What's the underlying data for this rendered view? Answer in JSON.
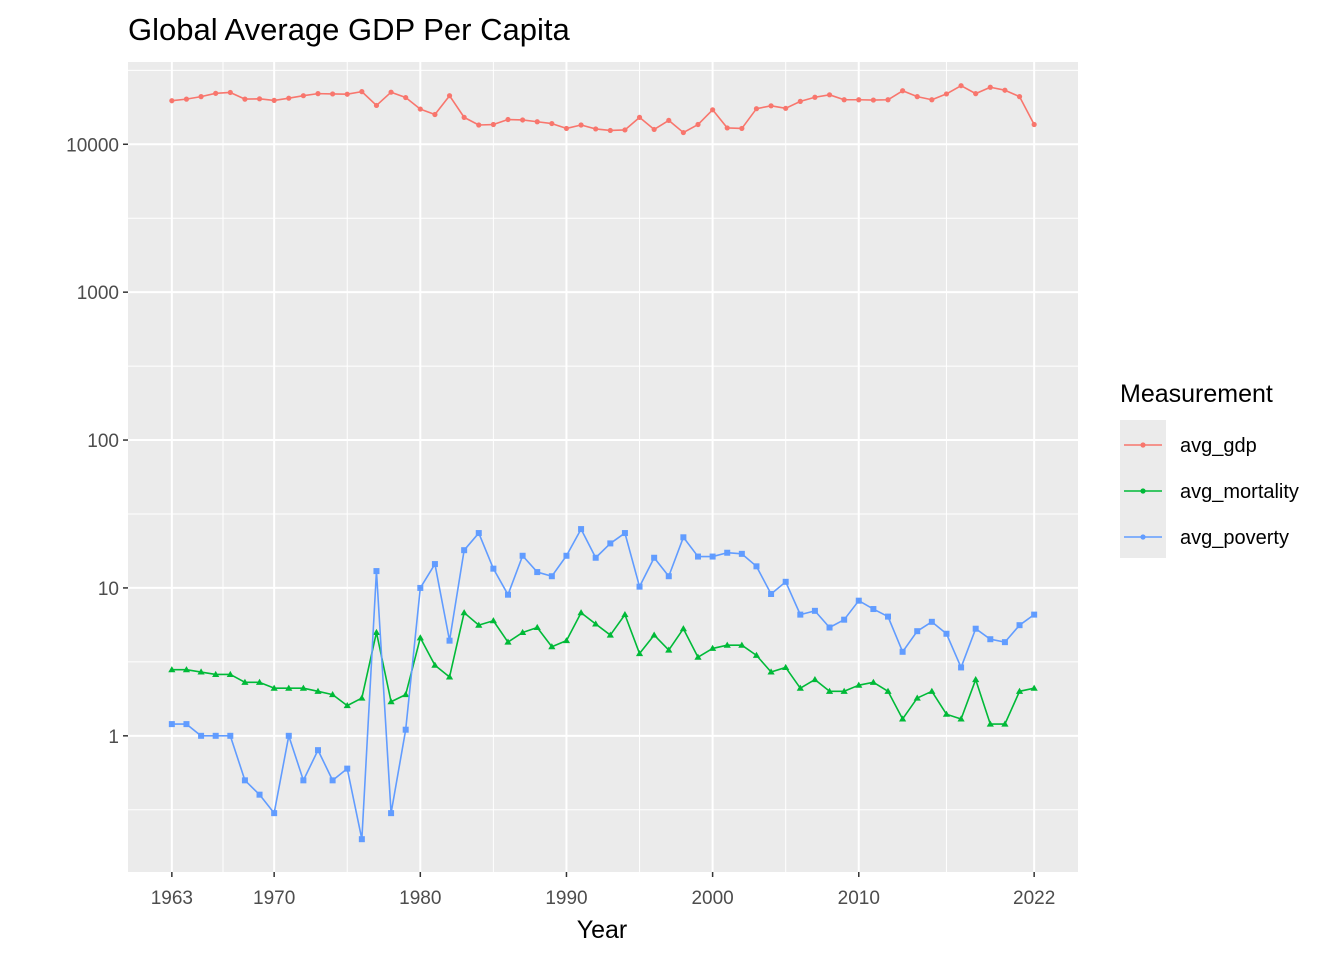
{
  "chart_data": {
    "type": "line",
    "title": "Global Average GDP Per Capita",
    "xlabel": "Year",
    "ylabel": "",
    "y_scale": "log10",
    "xlim": [
      1960,
      2025
    ],
    "ylim": [
      0.12,
      36000
    ],
    "x_ticks": [
      1963,
      1970,
      1980,
      1990,
      2000,
      2010,
      2022
    ],
    "y_ticks": [
      1,
      10,
      100,
      1000,
      10000
    ],
    "y_tick_labels": [
      "1",
      "10",
      "100",
      "1000",
      "10000"
    ],
    "grid": true,
    "panel_background": "#ebebeb",
    "legend": {
      "title": "Measurement",
      "position": "right",
      "entries": [
        "avg_gdp",
        "avg_mortality",
        "avg_poverty"
      ]
    },
    "x": [
      1963,
      1964,
      1965,
      1966,
      1967,
      1968,
      1969,
      1970,
      1971,
      1972,
      1973,
      1974,
      1975,
      1976,
      1977,
      1978,
      1979,
      1980,
      1981,
      1982,
      1983,
      1984,
      1985,
      1986,
      1987,
      1988,
      1989,
      1990,
      1991,
      1992,
      1993,
      1994,
      1995,
      1996,
      1997,
      1998,
      1999,
      2000,
      2001,
      2002,
      2003,
      2004,
      2005,
      2006,
      2007,
      2008,
      2009,
      2010,
      2011,
      2012,
      2013,
      2014,
      2015,
      2016,
      2017,
      2018,
      2019,
      2020,
      2021,
      2022
    ],
    "series": [
      {
        "name": "avg_gdp",
        "color": "#f8766d",
        "marker": "circle",
        "values": [
          19700,
          20200,
          21000,
          22100,
          22400,
          20200,
          20300,
          19800,
          20500,
          21300,
          22000,
          21900,
          21800,
          22700,
          18300,
          22500,
          20700,
          17300,
          15900,
          21300,
          15200,
          13500,
          13600,
          14700,
          14600,
          14200,
          13800,
          12800,
          13500,
          12700,
          12400,
          12500,
          15200,
          12600,
          14500,
          12000,
          13600,
          17100,
          12900,
          12800,
          17400,
          18200,
          17500,
          19500,
          20800,
          21600,
          20000,
          20000,
          19900,
          20000,
          23000,
          21000,
          20000,
          21900,
          24900,
          22000,
          24300,
          23200,
          21000,
          13600
        ]
      },
      {
        "name": "avg_mortality",
        "color": "#00ba38",
        "marker": "triangle",
        "values": [
          2.8,
          2.8,
          2.7,
          2.6,
          2.6,
          2.3,
          2.3,
          2.1,
          2.1,
          2.1,
          2.0,
          1.9,
          1.6,
          1.8,
          5.0,
          1.7,
          1.9,
          4.6,
          3.0,
          2.5,
          6.8,
          5.6,
          6.0,
          4.3,
          5.0,
          5.4,
          4.0,
          4.4,
          6.8,
          5.7,
          4.8,
          6.6,
          3.6,
          4.8,
          3.8,
          5.3,
          3.4,
          3.9,
          4.1,
          4.1,
          3.5,
          2.7,
          2.9,
          2.1,
          2.4,
          2.0,
          2.0,
          2.2,
          2.3,
          2.0,
          1.3,
          1.8,
          2.0,
          1.4,
          1.3,
          2.4,
          1.2,
          1.2,
          2.0,
          2.1
        ]
      },
      {
        "name": "avg_poverty",
        "color": "#619cff",
        "marker": "square",
        "values": [
          1.2,
          1.2,
          1.0,
          1.0,
          1.0,
          0.5,
          0.4,
          0.3,
          1.0,
          0.5,
          0.8,
          0.5,
          0.6,
          0.2,
          13.0,
          0.3,
          1.1,
          10.0,
          14.5,
          4.4,
          18.0,
          23.5,
          13.5,
          9.0,
          16.5,
          12.8,
          12.0,
          16.5,
          25.0,
          16.0,
          20.0,
          23.5,
          10.2,
          16.0,
          12.0,
          22.0,
          16.3,
          16.3,
          17.3,
          17.0,
          14.0,
          9.1,
          11.0,
          6.6,
          7.0,
          5.4,
          6.1,
          8.2,
          7.2,
          6.4,
          3.7,
          5.1,
          5.9,
          4.9,
          2.9,
          5.3,
          4.5,
          4.3,
          5.6,
          6.6
        ]
      }
    ]
  }
}
